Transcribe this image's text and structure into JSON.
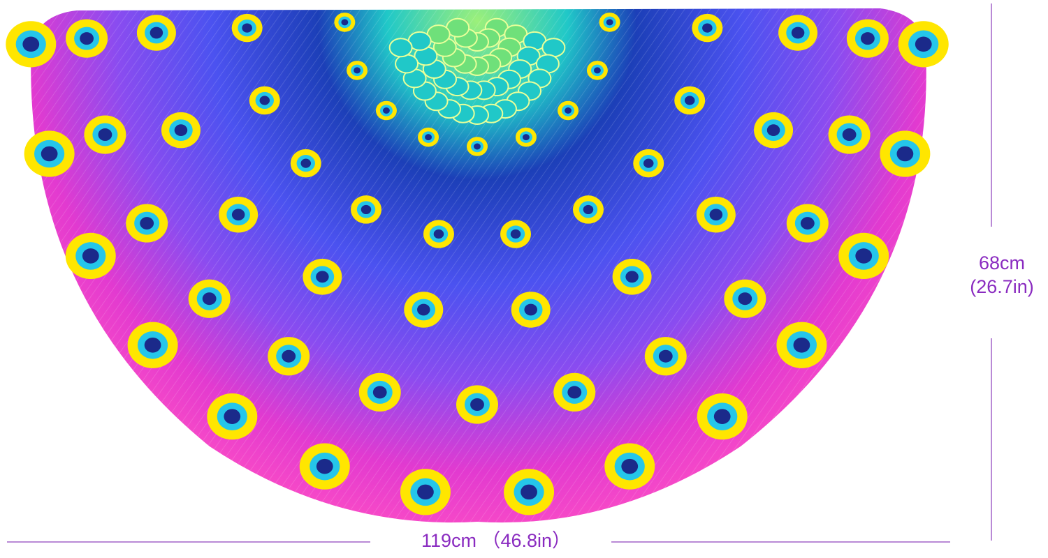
{
  "product_image": {
    "subject_icon": "peacock-feather-cape",
    "colors": {
      "pink": "#f23bc8",
      "purple": "#7a3df0",
      "blue": "#2a5de8",
      "teal": "#20c8c8",
      "green": "#6fe07a",
      "eye_yellow": "#ffe600",
      "eye_cyan": "#25c6ea",
      "eye_navy": "#1b2a8a"
    }
  },
  "dimensions": {
    "height_cm": "68cm",
    "height_in": "(26.7in)",
    "width": "119cm （46.8in）",
    "annotation_color": "#8a2bc0"
  }
}
